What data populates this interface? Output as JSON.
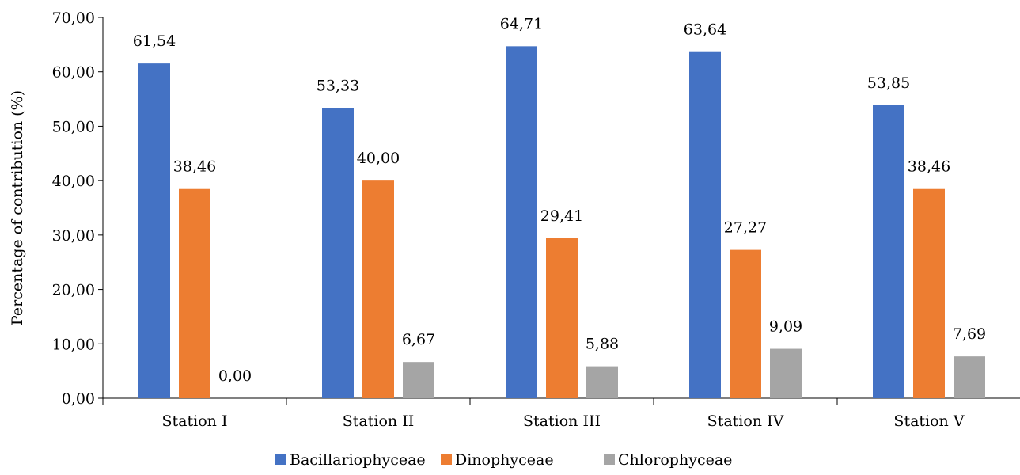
{
  "chart_data": {
    "type": "bar",
    "title": "",
    "xlabel": "",
    "ylabel": "Percentage of contribution (%)",
    "ylim": [
      0,
      70
    ],
    "yticks": [
      "0,00",
      "10,00",
      "20,00",
      "30,00",
      "40,00",
      "50,00",
      "60,00",
      "70,00"
    ],
    "categories": [
      "Station I",
      "Station II",
      "Station III",
      "Station IV",
      "Station V"
    ],
    "series": [
      {
        "name": "Bacillariophyceae",
        "color": "#4472C4",
        "values": [
          61.54,
          53.33,
          64.71,
          63.64,
          53.85
        ],
        "labels": [
          "61,54",
          "53,33",
          "64,71",
          "63,64",
          "53,85"
        ]
      },
      {
        "name": "Dinophyceae",
        "color": "#ED7D31",
        "values": [
          38.46,
          40.0,
          29.41,
          27.27,
          38.46
        ],
        "labels": [
          "38,46",
          "40,00",
          "29,41",
          "27,27",
          "38,46"
        ]
      },
      {
        "name": "Chlorophyceae",
        "color": "#A5A5A5",
        "values": [
          0.0,
          6.67,
          5.88,
          9.09,
          7.69
        ],
        "labels": [
          "0,00",
          "6,67",
          "5,88",
          "9,09",
          "7,69"
        ]
      }
    ],
    "grid": false,
    "legend_position": "bottom"
  }
}
